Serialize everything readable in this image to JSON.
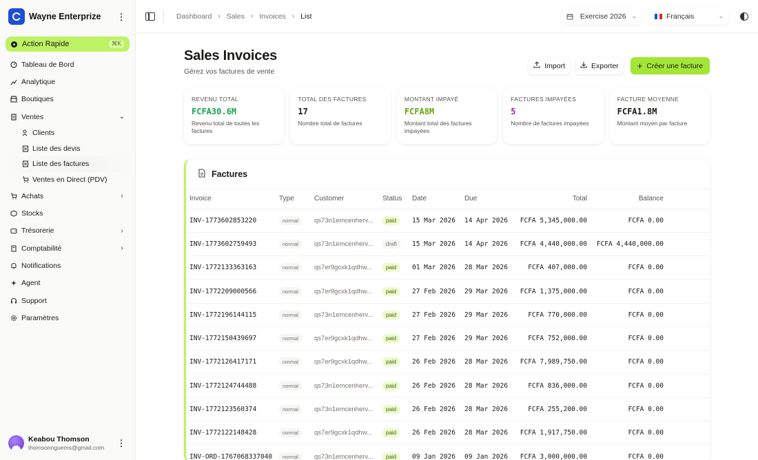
{
  "brand": {
    "name": "Wayne Enterprize"
  },
  "quick_action": {
    "label": "Action Rapide",
    "shortcut": "⌘K"
  },
  "nav": {
    "dashboard": "Tableau de Bord",
    "analytics": "Analytique",
    "shops": "Boutiques",
    "sales": "Ventes",
    "sales_sub": {
      "clients": "Clients",
      "quotes": "Liste des devis",
      "invoices": "Liste des factures",
      "pos": "Ventes en Direct (PDV)"
    },
    "purchases": "Achats",
    "stocks": "Stocks",
    "treasury": "Trésorerie",
    "accounting": "Comptabilité",
    "notifications": "Notifications",
    "agent": "Agent",
    "support": "Support",
    "settings": "Paramètres"
  },
  "user": {
    "name": "Keabou Thomson",
    "email": "thomsonnguems@gmail.com"
  },
  "breadcrumb": [
    "Dashboard",
    "Sales",
    "Invoices",
    "List"
  ],
  "fiscal_year": "Exercise 2026",
  "language": "Français",
  "page": {
    "title": "Sales Invoices",
    "subtitle": "Gérez vos factures de vente"
  },
  "actions": {
    "import": "Import",
    "export": "Exporter",
    "create": "Créer une facture"
  },
  "stats": [
    {
      "label": "REVENU TOTAL",
      "value": "FCFA30.6M",
      "desc": "Revenu total de toutes les factures",
      "color": "#16a34a"
    },
    {
      "label": "TOTAL DES FACTURES",
      "value": "17",
      "desc": "Nombre total de factures",
      "color": "#1c1917"
    },
    {
      "label": "MONTANT IMPAYÉ",
      "value": "FCFA8M",
      "desc": "Montant total des factures impayées",
      "color": "#65a30d"
    },
    {
      "label": "FACTURES IMPAYÉES",
      "value": "5",
      "desc": "Nombre de factures impayées",
      "color": "#a21caf"
    },
    {
      "label": "FACTURE MOYENNE",
      "value": "FCFA1.8M",
      "desc": "Montant moyen par facture",
      "color": "#1c1917"
    }
  ],
  "table": {
    "title": "Factures",
    "columns": [
      "Invoice",
      "Type",
      "Customer",
      "Status",
      "Date",
      "Due",
      "Total",
      "Balance"
    ],
    "rows": [
      {
        "invoice": "INV-1773602853220",
        "type": "normal",
        "customer": "qs73n1emcenherv...",
        "status": "paid",
        "date": "15 Mar 2026",
        "due": "14 Apr 2026",
        "total": "FCFA 5,345,000.00",
        "balance": "FCFA 0.00"
      },
      {
        "invoice": "INV-1773602759493",
        "type": "normal",
        "customer": "qs73n1emcenherv...",
        "status": "draft",
        "date": "15 Mar 2026",
        "due": "14 Apr 2026",
        "total": "FCFA 4,440,000.00",
        "balance": "FCFA 4,440,000.00"
      },
      {
        "invoice": "INV-1772133363163",
        "type": "normal",
        "customer": "qs7er9gcxk1qdhw...",
        "status": "paid",
        "date": "01 Mar 2026",
        "due": "28 Mar 2026",
        "total": "FCFA 407,000.00",
        "balance": "FCFA 0.00"
      },
      {
        "invoice": "INV-1772209000566",
        "type": "normal",
        "customer": "qs7er9gcxk1qdhw...",
        "status": "paid",
        "date": "27 Feb 2026",
        "due": "29 Mar 2026",
        "total": "FCFA 1,375,000.00",
        "balance": "FCFA 0.00"
      },
      {
        "invoice": "INV-1772196144115",
        "type": "normal",
        "customer": "qs73n1emcenherv...",
        "status": "paid",
        "date": "27 Feb 2026",
        "due": "29 Mar 2026",
        "total": "FCFA 770,000.00",
        "balance": "FCFA 0.00"
      },
      {
        "invoice": "INV-1772150439697",
        "type": "normal",
        "customer": "qs7er9gcxk1qdhw...",
        "status": "paid",
        "date": "27 Feb 2026",
        "due": "29 Mar 2026",
        "total": "FCFA 752,000.00",
        "balance": "FCFA 0.00"
      },
      {
        "invoice": "INV-1772126417171",
        "type": "normal",
        "customer": "qs7er9gcxk1qdhw...",
        "status": "paid",
        "date": "26 Feb 2026",
        "due": "28 Mar 2026",
        "total": "FCFA 7,989,750.00",
        "balance": "FCFA 0.00"
      },
      {
        "invoice": "INV-1772124744488",
        "type": "normal",
        "customer": "qs73n1emcenherv...",
        "status": "paid",
        "date": "26 Feb 2026",
        "due": "28 Mar 2026",
        "total": "FCFA 836,000.00",
        "balance": "FCFA 0.00"
      },
      {
        "invoice": "INV-1772123560374",
        "type": "normal",
        "customer": "qs73n1emcenherv...",
        "status": "paid",
        "date": "26 Feb 2026",
        "due": "28 Mar 2026",
        "total": "FCFA 255,200.00",
        "balance": "FCFA 0.00"
      },
      {
        "invoice": "INV-1772122148428",
        "type": "normal",
        "customer": "qs7er9gcxk1qdhw...",
        "status": "paid",
        "date": "26 Feb 2026",
        "due": "28 Mar 2026",
        "total": "FCFA 1,917,750.00",
        "balance": "FCFA 0.00"
      },
      {
        "invoice": "INV-ORD-1767068337040",
        "type": "normal",
        "customer": "qs73n1emcenherv...",
        "status": "paid",
        "date": "09 Jan 2026",
        "due": "09 Jan 2026",
        "total": "FCFA 3,000,000.00",
        "balance": "FCFA 0.00"
      }
    ]
  },
  "colors": {
    "accent": "#a3e635",
    "accent_light": "#bef264",
    "brand_blue": "#1d4ed8"
  }
}
